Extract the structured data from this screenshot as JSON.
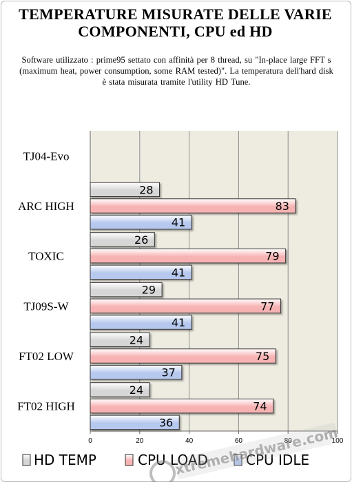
{
  "chart_data": {
    "type": "bar",
    "orientation": "horizontal",
    "title": "TEMPERATURE MISURATE DELLE VARIE COMPONENTI, CPU ed HD",
    "subtitle": "Software utilizzato : prime95 settato con affinità per 8 thread, su \"In-place large FFT s (maximum heat, power consumption, some RAM tested)\". La temperatura dell'hard disk è stata misurata tramite l'utility HD Tune.",
    "categories": [
      "TJ04-Evo",
      "ARC HIGH",
      "TOXIC",
      "TJ09S-W",
      "FT02 LOW",
      "FT02 HIGH"
    ],
    "series": [
      {
        "name": "HD TEMP",
        "values": [
          null,
          28,
          26,
          29,
          24,
          24
        ]
      },
      {
        "name": "CPU LOAD",
        "values": [
          null,
          83,
          79,
          77,
          75,
          74
        ]
      },
      {
        "name": "CPU IDLE",
        "values": [
          null,
          41,
          41,
          41,
          37,
          36
        ]
      }
    ],
    "xlim": [
      0,
      100
    ],
    "xticks": [
      0,
      20,
      40,
      60,
      80,
      100
    ],
    "grid": true,
    "legend_position": "bottom",
    "colors": {
      "HD TEMP": "#d6d6d6",
      "CPU LOAD": "#f7b3b3",
      "CPU IDLE": "#b6c8ee",
      "plot_background": "#eeece1",
      "gridline": "#8c8c8c"
    },
    "watermark": "xtremehardware.com"
  }
}
